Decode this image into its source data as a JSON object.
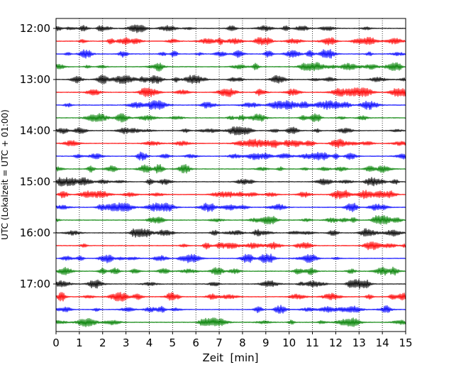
{
  "chart_data": {
    "type": "line",
    "subtype": "helicorder-seismogram",
    "title": "",
    "xlabel": "Zeit  [min]",
    "ylabel": "UTC (Lokalzeit = UTC + 01:00)",
    "xlim": [
      0,
      15
    ],
    "x_ticks": [
      "0",
      "1",
      "2",
      "3",
      "4",
      "5",
      "6",
      "7",
      "8",
      "9",
      "10",
      "11",
      "12",
      "13",
      "14",
      "15"
    ],
    "y_tick_labels": [
      "12:00",
      "13:00",
      "14:00",
      "15:00",
      "16:00",
      "17:00"
    ],
    "traces_per_hour": 4,
    "trace_count": 24,
    "trace_minutes": 15,
    "grid": "vertical-dotted",
    "legend": "none",
    "trace_colors": [
      "#000000",
      "#ff0000",
      "#0000ff",
      "#008000"
    ]
  }
}
